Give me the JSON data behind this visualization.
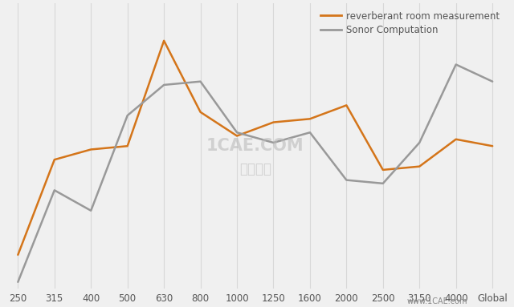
{
  "x_labels": [
    "250",
    "315",
    "400",
    "500",
    "630",
    "800",
    "1000",
    "1250",
    "1600",
    "2000",
    "2500",
    "3150",
    "4000",
    "Global"
  ],
  "x_positions": [
    0,
    1,
    2,
    3,
    4,
    5,
    6,
    7,
    8,
    9,
    10,
    11,
    12,
    13
  ],
  "orange_y": [
    5.0,
    19.0,
    20.5,
    21.0,
    36.5,
    26.0,
    22.5,
    24.5,
    25.0,
    27.0,
    17.5,
    18.0,
    22.0,
    21.0
  ],
  "gray_y": [
    1.0,
    14.5,
    11.5,
    25.5,
    30.0,
    30.5,
    23.0,
    21.5,
    23.0,
    16.0,
    15.5,
    21.5,
    33.0,
    30.5
  ],
  "orange_color": "#D4751A",
  "gray_color": "#999999",
  "bg_color": "#f0f0f0",
  "legend_orange": "reverberant room measurement",
  "legend_gray": "Sonor Computation",
  "grid_color": "#d8d8d8",
  "ylim_min": 0,
  "ylim_max": 42
}
